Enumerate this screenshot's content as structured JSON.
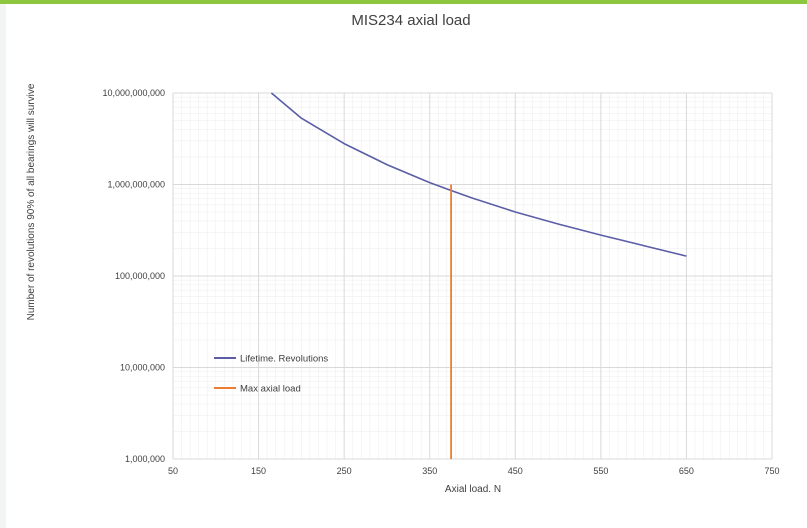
{
  "colors": {
    "accent_bar": "#8dc63f",
    "grid_major": "#d9d9d9",
    "grid_minor": "#efefef",
    "lifetime_series": "#5b5ea6",
    "max_load_series": "#ed7d31"
  },
  "chart_data": {
    "type": "line",
    "title": "MIS234 axial load",
    "xlabel": "Axial load. N",
    "ylabel": "Number of revolutions 90% of all bearings will survive",
    "xlim": [
      50,
      750
    ],
    "ylim": [
      1000000,
      10000000000
    ],
    "yscale": "log",
    "grid": true,
    "legend_position": "bottom-left",
    "x_ticks": [
      50,
      150,
      250,
      350,
      450,
      550,
      650,
      750
    ],
    "x_tick_labels": [
      "50",
      "150",
      "250",
      "350",
      "450",
      "550",
      "650",
      "750"
    ],
    "y_ticks": [
      1000000,
      10000000,
      100000000,
      1000000000,
      10000000000
    ],
    "y_tick_labels": [
      "1,000,000",
      "10,000,000",
      "100,000,000",
      "1,000,000,000",
      "10,000,000,000"
    ],
    "series": [
      {
        "name": "Lifetime. Revolutions",
        "color": "#5b5ea6",
        "x": [
          165,
          200,
          250,
          300,
          350,
          375,
          400,
          450,
          500,
          550,
          600,
          650
        ],
        "y": [
          10000000000,
          5300000000,
          2800000000,
          1650000000,
          1050000000,
          860000000,
          710000000,
          500000000,
          370000000,
          280000000,
          215000000,
          165000000
        ]
      },
      {
        "name": "Max axial load",
        "color": "#ed7d31",
        "x": [
          375,
          375
        ],
        "y": [
          1000000,
          1000000000
        ]
      }
    ]
  }
}
